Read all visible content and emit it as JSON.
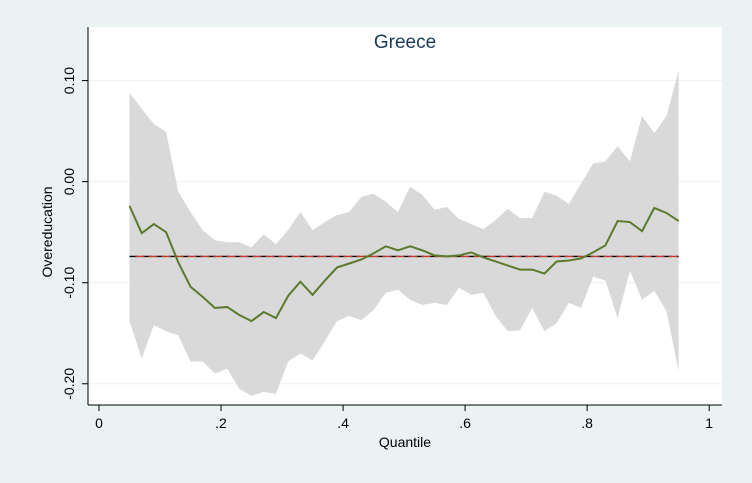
{
  "chart_data": {
    "type": "line",
    "title": "Greece",
    "x_label": "Quantile",
    "y_label": "Overeducation",
    "x": [
      0.05,
      0.07,
      0.09,
      0.11,
      0.13,
      0.15,
      0.17,
      0.19,
      0.21,
      0.23,
      0.25,
      0.27,
      0.29,
      0.31,
      0.33,
      0.35,
      0.37,
      0.39,
      0.41,
      0.43,
      0.45,
      0.47,
      0.49,
      0.51,
      0.53,
      0.55,
      0.57,
      0.59,
      0.61,
      0.63,
      0.65,
      0.67,
      0.69,
      0.71,
      0.73,
      0.75,
      0.77,
      0.79,
      0.81,
      0.83,
      0.85,
      0.87,
      0.89,
      0.91,
      0.93,
      0.95
    ],
    "series": [
      {
        "color": "#5b7a2b",
        "values": [
          -0.024,
          -0.051,
          -0.042,
          -0.05,
          -0.08,
          -0.104,
          -0.114,
          -0.125,
          -0.124,
          -0.132,
          -0.138,
          -0.129,
          -0.135,
          -0.113,
          -0.099,
          -0.112,
          -0.098,
          -0.085,
          -0.081,
          -0.077,
          -0.071,
          -0.064,
          -0.068,
          -0.064,
          -0.068,
          -0.073,
          -0.074,
          -0.073,
          -0.07,
          -0.075,
          -0.079,
          -0.083,
          -0.087,
          -0.087,
          -0.091,
          -0.079,
          -0.078,
          -0.076,
          -0.07,
          -0.063,
          -0.039,
          -0.04,
          -0.049,
          -0.026,
          -0.031,
          -0.039
        ]
      }
    ],
    "band": {
      "color": "#d9d9d9",
      "upper": [
        0.088,
        0.072,
        0.057,
        0.049,
        -0.01,
        -0.03,
        -0.048,
        -0.058,
        -0.06,
        -0.06,
        -0.065,
        -0.052,
        -0.062,
        -0.048,
        -0.03,
        -0.048,
        -0.04,
        -0.033,
        -0.03,
        -0.015,
        -0.012,
        -0.02,
        -0.03,
        -0.005,
        -0.013,
        -0.028,
        -0.025,
        -0.037,
        -0.042,
        -0.047,
        -0.038,
        -0.027,
        -0.036,
        -0.036,
        -0.01,
        -0.014,
        -0.022,
        -0.002,
        0.018,
        0.02,
        0.035,
        0.02,
        0.065,
        0.048,
        0.065,
        0.11
      ],
      "lower": [
        -0.138,
        -0.175,
        -0.142,
        -0.148,
        -0.152,
        -0.178,
        -0.178,
        -0.19,
        -0.185,
        -0.205,
        -0.212,
        -0.208,
        -0.21,
        -0.178,
        -0.17,
        -0.177,
        -0.158,
        -0.138,
        -0.133,
        -0.137,
        -0.127,
        -0.11,
        -0.107,
        -0.117,
        -0.122,
        -0.12,
        -0.122,
        -0.105,
        -0.112,
        -0.11,
        -0.133,
        -0.148,
        -0.147,
        -0.125,
        -0.148,
        -0.14,
        -0.12,
        -0.125,
        -0.094,
        -0.098,
        -0.135,
        -0.088,
        -0.117,
        -0.108,
        -0.128,
        -0.188
      ]
    },
    "hline": {
      "value": -0.074,
      "colors": [
        "#000000",
        "#c0392b"
      ]
    },
    "xlim": [
      -0.018,
      1.021
    ],
    "ylim": [
      -0.221,
      0.153
    ],
    "xticks": [
      0,
      {
        "value": 0.2,
        "label": ".2"
      },
      {
        "value": 0.4,
        "label": ".4"
      },
      {
        "value": 0.6,
        "label": ".6"
      },
      {
        "value": 0.8,
        "label": ".8"
      },
      1
    ],
    "yticks": [
      {
        "value": -0.2,
        "label": "-0.20"
      },
      {
        "value": -0.1,
        "label": "-0.10"
      },
      {
        "value": 0,
        "label": "0.00"
      },
      {
        "value": 0.1,
        "label": "0.10"
      }
    ],
    "grid": true
  }
}
